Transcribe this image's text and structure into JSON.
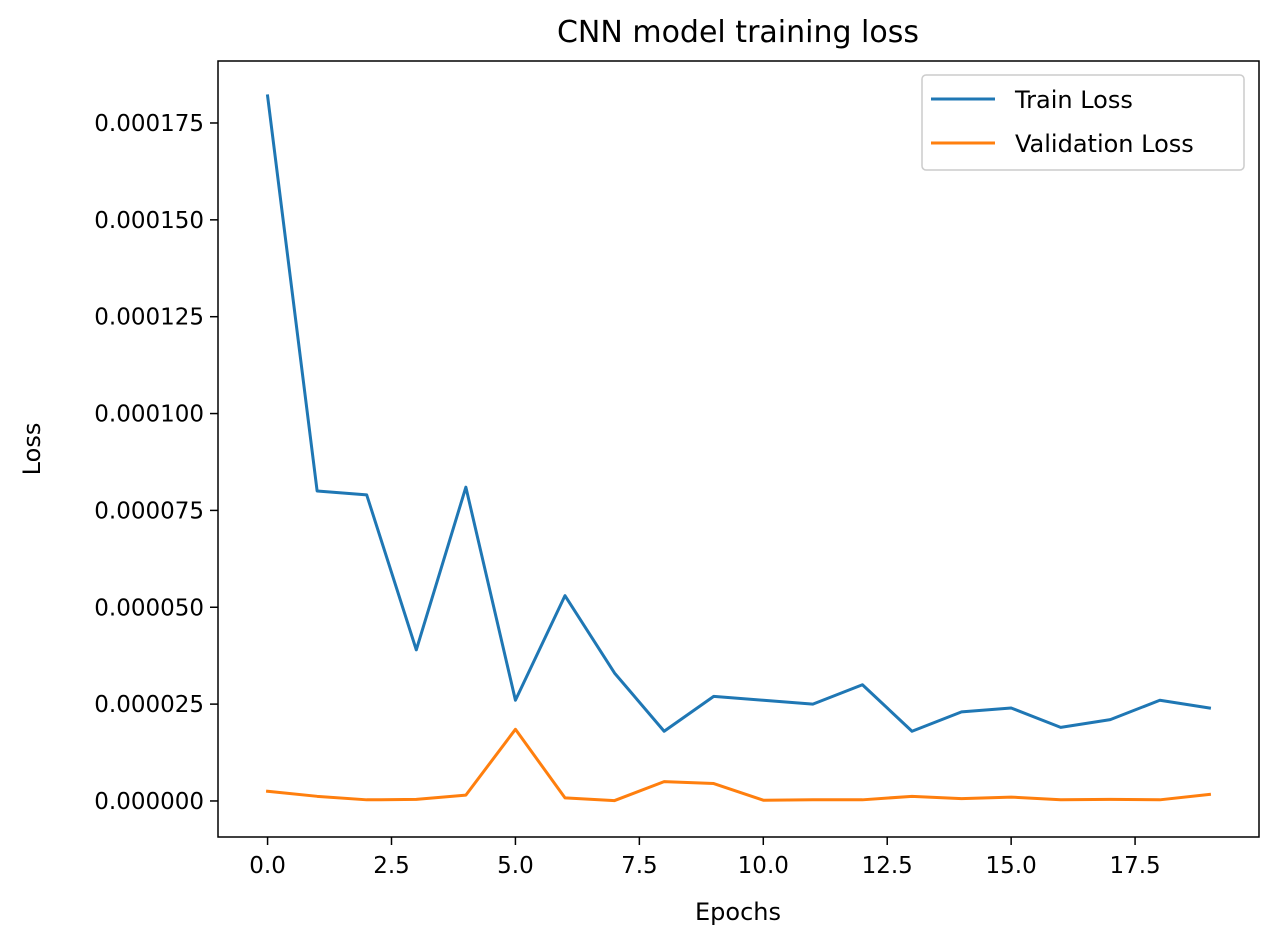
{
  "chart_data": {
    "type": "line",
    "title": "CNN model training loss",
    "xlabel": "Epochs",
    "ylabel": "Loss",
    "x": [
      0,
      1,
      2,
      3,
      4,
      5,
      6,
      7,
      8,
      9,
      10,
      11,
      12,
      13,
      14,
      15,
      16,
      17,
      18,
      19
    ],
    "series": [
      {
        "name": "Train Loss",
        "color": "#1f77b4",
        "values": [
          0.000182,
          8e-05,
          7.9e-05,
          3.9e-05,
          8.1e-05,
          2.6e-05,
          5.3e-05,
          3.3e-05,
          1.8e-05,
          2.7e-05,
          2.6e-05,
          2.5e-05,
          3e-05,
          1.8e-05,
          2.3e-05,
          2.4e-05,
          1.9e-05,
          2.1e-05,
          2.6e-05,
          2.4e-05
        ]
      },
      {
        "name": "Validation Loss",
        "color": "#ff7f0e",
        "values": [
          2.5e-06,
          1.2e-06,
          3e-07,
          4e-07,
          1.5e-06,
          1.85e-05,
          8e-07,
          1e-07,
          5e-06,
          4.5e-06,
          2e-07,
          3e-07,
          3e-07,
          1.2e-06,
          6e-07,
          1e-06,
          3e-07,
          4e-07,
          3e-07,
          1.7e-06
        ]
      }
    ],
    "xlim": [
      -1.0,
      20.0
    ],
    "ylim": [
      -9.3e-06,
      0.000191
    ],
    "xticks": [
      0.0,
      2.5,
      5.0,
      7.5,
      10.0,
      12.5,
      15.0,
      17.5
    ],
    "xtick_labels": [
      "0.0",
      "2.5",
      "5.0",
      "7.5",
      "10.0",
      "12.5",
      "15.0",
      "17.5"
    ],
    "yticks": [
      0.0,
      2.5e-05,
      5e-05,
      7.5e-05,
      0.0001,
      0.000125,
      0.00015,
      0.000175
    ],
    "ytick_labels": [
      "0.000000",
      "0.000025",
      "0.000050",
      "0.000075",
      "0.000100",
      "0.000125",
      "0.000150",
      "0.000175"
    ],
    "legend_position": "top-right",
    "grid": false
  }
}
